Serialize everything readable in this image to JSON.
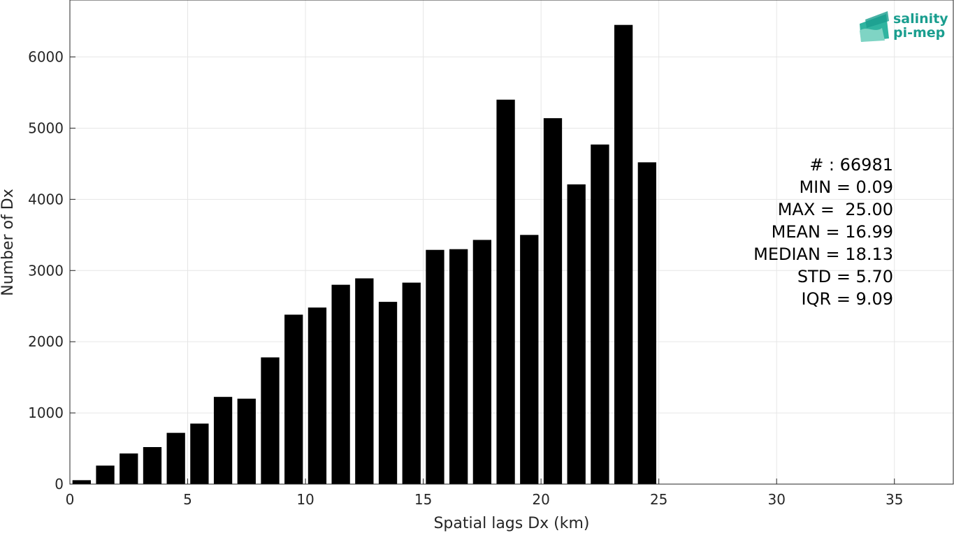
{
  "chart_data": {
    "type": "bar",
    "xlabel": "Spatial lags Dx (km)",
    "ylabel": "Number of Dx",
    "xlim": [
      0,
      37.5
    ],
    "ylim": [
      0,
      6800
    ],
    "xticks": [
      0,
      5,
      10,
      15,
      20,
      25,
      30,
      35
    ],
    "yticks": [
      0,
      1000,
      2000,
      3000,
      4000,
      5000,
      6000
    ],
    "grid": true,
    "bar_color": "#000000",
    "bin_width": 1,
    "x": [
      0.5,
      1.5,
      2.5,
      3.5,
      4.5,
      5.5,
      6.5,
      7.5,
      8.5,
      9.5,
      10.5,
      11.5,
      12.5,
      13.5,
      14.5,
      15.5,
      16.5,
      17.5,
      18.5,
      19.5,
      20.5,
      21.5,
      22.5,
      23.5,
      24.5
    ],
    "values": [
      55,
      260,
      430,
      520,
      720,
      850,
      1225,
      1200,
      1780,
      2380,
      2480,
      2800,
      2890,
      2560,
      2830,
      3290,
      3300,
      3430,
      5400,
      3500,
      5140,
      4210,
      4770,
      6450,
      4520
    ]
  },
  "stats": {
    "lines": [
      "# : 66981",
      "MIN = 0.09",
      "MAX =  25.00",
      "MEAN = 16.99",
      "MEDIAN = 18.13",
      "STD = 5.70",
      "IQR = 9.09"
    ]
  },
  "logo": {
    "line1": "salinity",
    "line2": "pi-mep",
    "color": "#1a9e8f"
  }
}
